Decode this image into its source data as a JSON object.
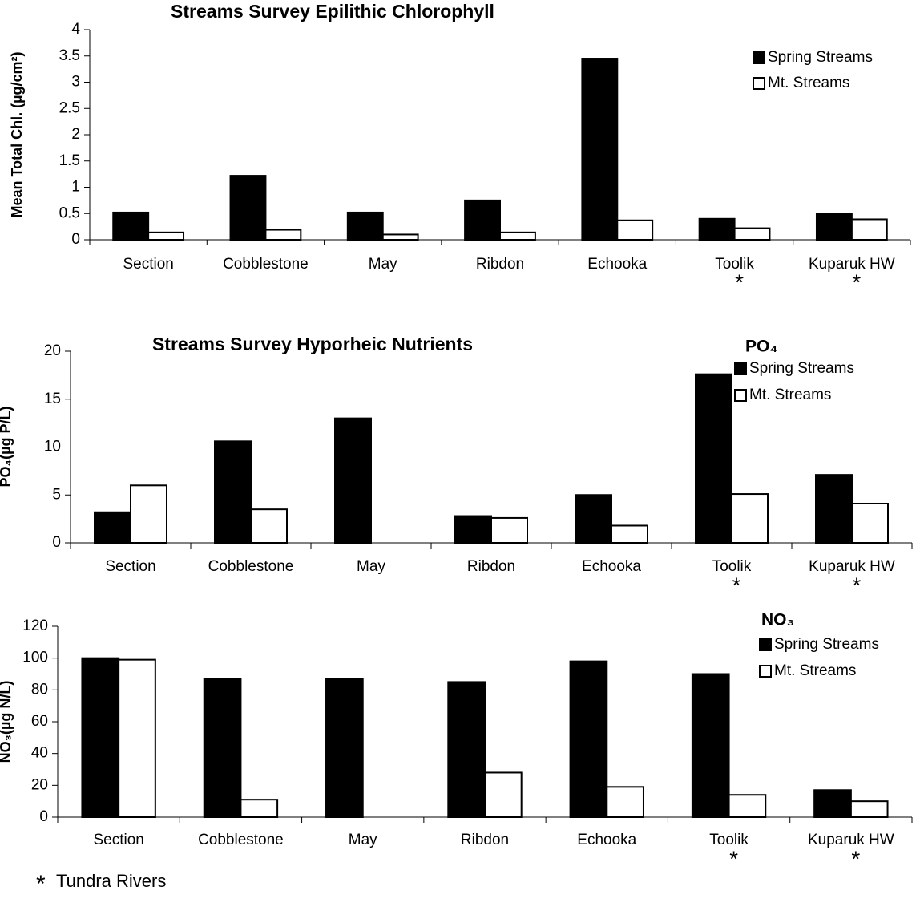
{
  "chart_data": [
    {
      "type": "bar",
      "title": "Streams Survey Epilithic Chlorophyll",
      "y_label": "Mean Total Chl. (µg/cm²)",
      "categories": [
        "Section",
        "Cobblestone",
        "May",
        "Ribdon",
        "Echooka",
        "Toolik",
        "Kuparuk HW"
      ],
      "category_markers": [
        null,
        null,
        null,
        null,
        null,
        "*",
        "*"
      ],
      "series": [
        {
          "name": "Spring Streams",
          "color": "#000000",
          "values": [
            0.52,
            1.22,
            0.52,
            0.75,
            3.45,
            0.4,
            0.5
          ]
        },
        {
          "name": "Mt. Streams",
          "color": "#ffffff",
          "values": [
            0.14,
            0.19,
            0.1,
            0.14,
            0.37,
            0.22,
            0.39
          ]
        }
      ],
      "ylim": [
        0,
        4
      ],
      "yticks": [
        0,
        0.5,
        1,
        1.5,
        2,
        2.5,
        3,
        3.5,
        4
      ],
      "legend": "upper right"
    },
    {
      "type": "bar",
      "title": "Streams Survey Hyporheic Nutrients",
      "legend_title": "PO₄",
      "y_label": "PO₄(µg P/L)",
      "categories": [
        "Section",
        "Cobblestone",
        "May",
        "Ribdon",
        "Echooka",
        "Toolik",
        "Kuparuk HW"
      ],
      "category_markers": [
        null,
        null,
        null,
        null,
        null,
        "*",
        "*"
      ],
      "series": [
        {
          "name": "Spring Streams",
          "color": "#000000",
          "values": [
            3.2,
            10.6,
            13,
            2.8,
            5,
            17.6,
            7.1
          ]
        },
        {
          "name": "Mt. Streams",
          "color": "#ffffff",
          "values": [
            6,
            3.5,
            null,
            2.6,
            1.8,
            5.1,
            4.1
          ]
        }
      ],
      "ylim": [
        0,
        20
      ],
      "yticks": [
        0,
        5,
        10,
        15,
        20
      ],
      "legend": "upper right"
    },
    {
      "type": "bar",
      "legend_title": "NO₃",
      "y_label": "NO₃(µg N/L)",
      "categories": [
        "Section",
        "Cobblestone",
        "May",
        "Ribdon",
        "Echooka",
        "Toolik",
        "Kuparuk HW"
      ],
      "category_markers": [
        null,
        null,
        null,
        null,
        null,
        "*",
        "*"
      ],
      "series": [
        {
          "name": "Spring Streams",
          "color": "#000000",
          "values": [
            100,
            87,
            87,
            85,
            98,
            90,
            17
          ]
        },
        {
          "name": "Mt. Streams",
          "color": "#ffffff",
          "values": [
            99,
            11,
            null,
            28,
            19,
            14,
            10
          ]
        }
      ],
      "ylim": [
        0,
        120
      ],
      "yticks": [
        0,
        20,
        40,
        60,
        80,
        100,
        120
      ],
      "legend": "upper right"
    }
  ],
  "footnote": {
    "marker": "*",
    "text": "Tundra Rivers"
  }
}
